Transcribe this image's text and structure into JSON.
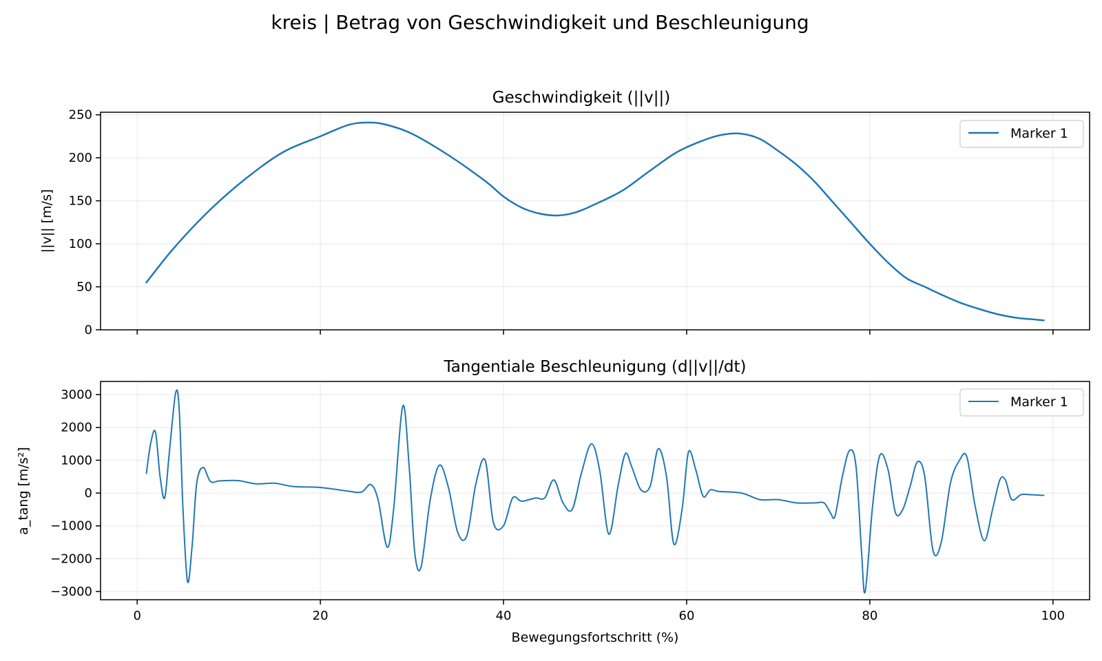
{
  "figure": {
    "title": "kreis | Betrag von Geschwindigkeit und Beschleunigung",
    "xlabel": "Bewegungsfortschritt (%)"
  },
  "colors": {
    "series": "#1f77b4",
    "grid": "#b0b0b0",
    "legend_border": "#cccccc"
  },
  "chart_data": [
    {
      "type": "line",
      "title": "Geschwindigkeit (||v||)",
      "xlabel": "",
      "ylabel": "||v|| [m/s]",
      "xlim": [
        -4,
        104
      ],
      "ylim": [
        0,
        253
      ],
      "xticks": [
        0,
        20,
        40,
        60,
        80,
        100
      ],
      "xtick_labels": [
        "",
        "",
        "",
        "",
        "",
        ""
      ],
      "yticks": [
        0,
        50,
        100,
        150,
        200,
        250
      ],
      "ytick_labels": [
        "0",
        "50",
        "100",
        "150",
        "200",
        "250"
      ],
      "grid": true,
      "legend": "top-right",
      "series": [
        {
          "name": "Marker 1",
          "x": [
            1,
            4,
            8,
            12,
            16,
            20,
            23,
            25,
            27,
            30,
            34,
            38,
            40,
            42,
            44,
            46,
            48,
            50,
            53,
            56,
            59,
            62,
            64,
            66,
            68,
            70,
            72,
            74,
            76,
            78,
            80,
            82,
            84,
            86,
            88,
            90,
            92,
            94,
            96,
            98,
            99
          ],
          "values": [
            55,
            95,
            140,
            177,
            207,
            225,
            238,
            241,
            239,
            228,
            203,
            173,
            155,
            142,
            135,
            133,
            137,
            146,
            162,
            185,
            207,
            221,
            227,
            228,
            222,
            208,
            192,
            172,
            148,
            124,
            100,
            78,
            60,
            50,
            40,
            31,
            24,
            18,
            14,
            12,
            11
          ]
        }
      ]
    },
    {
      "type": "line",
      "title": "Tangentiale Beschleunigung (d||v||/dt)",
      "xlabel": "Bewegungsfortschritt (%)",
      "ylabel": "a_tang [m/s²]",
      "xlim": [
        -4,
        104
      ],
      "ylim": [
        -3250,
        3400
      ],
      "xticks": [
        0,
        20,
        40,
        60,
        80,
        100
      ],
      "xtick_labels": [
        "0",
        "20",
        "40",
        "60",
        "80",
        "100"
      ],
      "yticks": [
        -3000,
        -2000,
        -1000,
        0,
        1000,
        2000,
        3000
      ],
      "ytick_labels": [
        "−3000",
        "−2000",
        "−1000",
        "0",
        "1000",
        "2000",
        "3000"
      ],
      "grid": true,
      "legend": "top-right",
      "series": [
        {
          "name": "Marker 1",
          "x": [
            1,
            1.5,
            2,
            2.5,
            3,
            3.5,
            4.2,
            4.6,
            5,
            5.5,
            6,
            6.5,
            7.2,
            8,
            9,
            11,
            13,
            15,
            17,
            20,
            23,
            24.5,
            25.5,
            26.3,
            27.3,
            28,
            29,
            29.7,
            30.3,
            31,
            32,
            33,
            34,
            35,
            36,
            37,
            38,
            38.9,
            40,
            41,
            42,
            43.5,
            44.5,
            45.5,
            46.5,
            47.5,
            48.5,
            49.6,
            50.5,
            51.5,
            52.5,
            53.3,
            54,
            55,
            56,
            56.9,
            57.8,
            58.6,
            59.5,
            60.2,
            61,
            61.8,
            62.6,
            63.5,
            66,
            68,
            70,
            72,
            74,
            75,
            75.7,
            76.2,
            77,
            77.8,
            78.5,
            79.1,
            79.5,
            80.3,
            81.1,
            82,
            82.8,
            83.6,
            84.4,
            85.2,
            86,
            86.9,
            87.8,
            88.8,
            89.8,
            90.6,
            91.5,
            92.5,
            93.4,
            94.2,
            94.8,
            95.5,
            96.5,
            97.5,
            99
          ],
          "values": [
            600,
            1550,
            1850,
            500,
            -150,
            1200,
            3050,
            2500,
            -500,
            -2700,
            -1600,
            300,
            780,
            350,
            370,
            380,
            280,
            300,
            200,
            170,
            60,
            30,
            260,
            -200,
            -1650,
            -500,
            2650,
            800,
            -1800,
            -2250,
            -200,
            850,
            150,
            -1200,
            -1300,
            300,
            1000,
            -900,
            -1000,
            -150,
            -250,
            -150,
            -150,
            400,
            -300,
            -500,
            600,
            1500,
            700,
            -1250,
            200,
            1200,
            800,
            100,
            200,
            1350,
            500,
            -1550,
            -500,
            1250,
            700,
            -100,
            100,
            50,
            0,
            -200,
            -200,
            -300,
            -300,
            -300,
            -600,
            -700,
            500,
            1300,
            800,
            -1800,
            -3000,
            -400,
            1150,
            700,
            -600,
            -500,
            200,
            950,
            500,
            -1750,
            -1500,
            300,
            1000,
            1100,
            -400,
            -1450,
            -500,
            400,
            400,
            -200,
            -50,
            -50,
            -70
          ]
        }
      ]
    }
  ]
}
